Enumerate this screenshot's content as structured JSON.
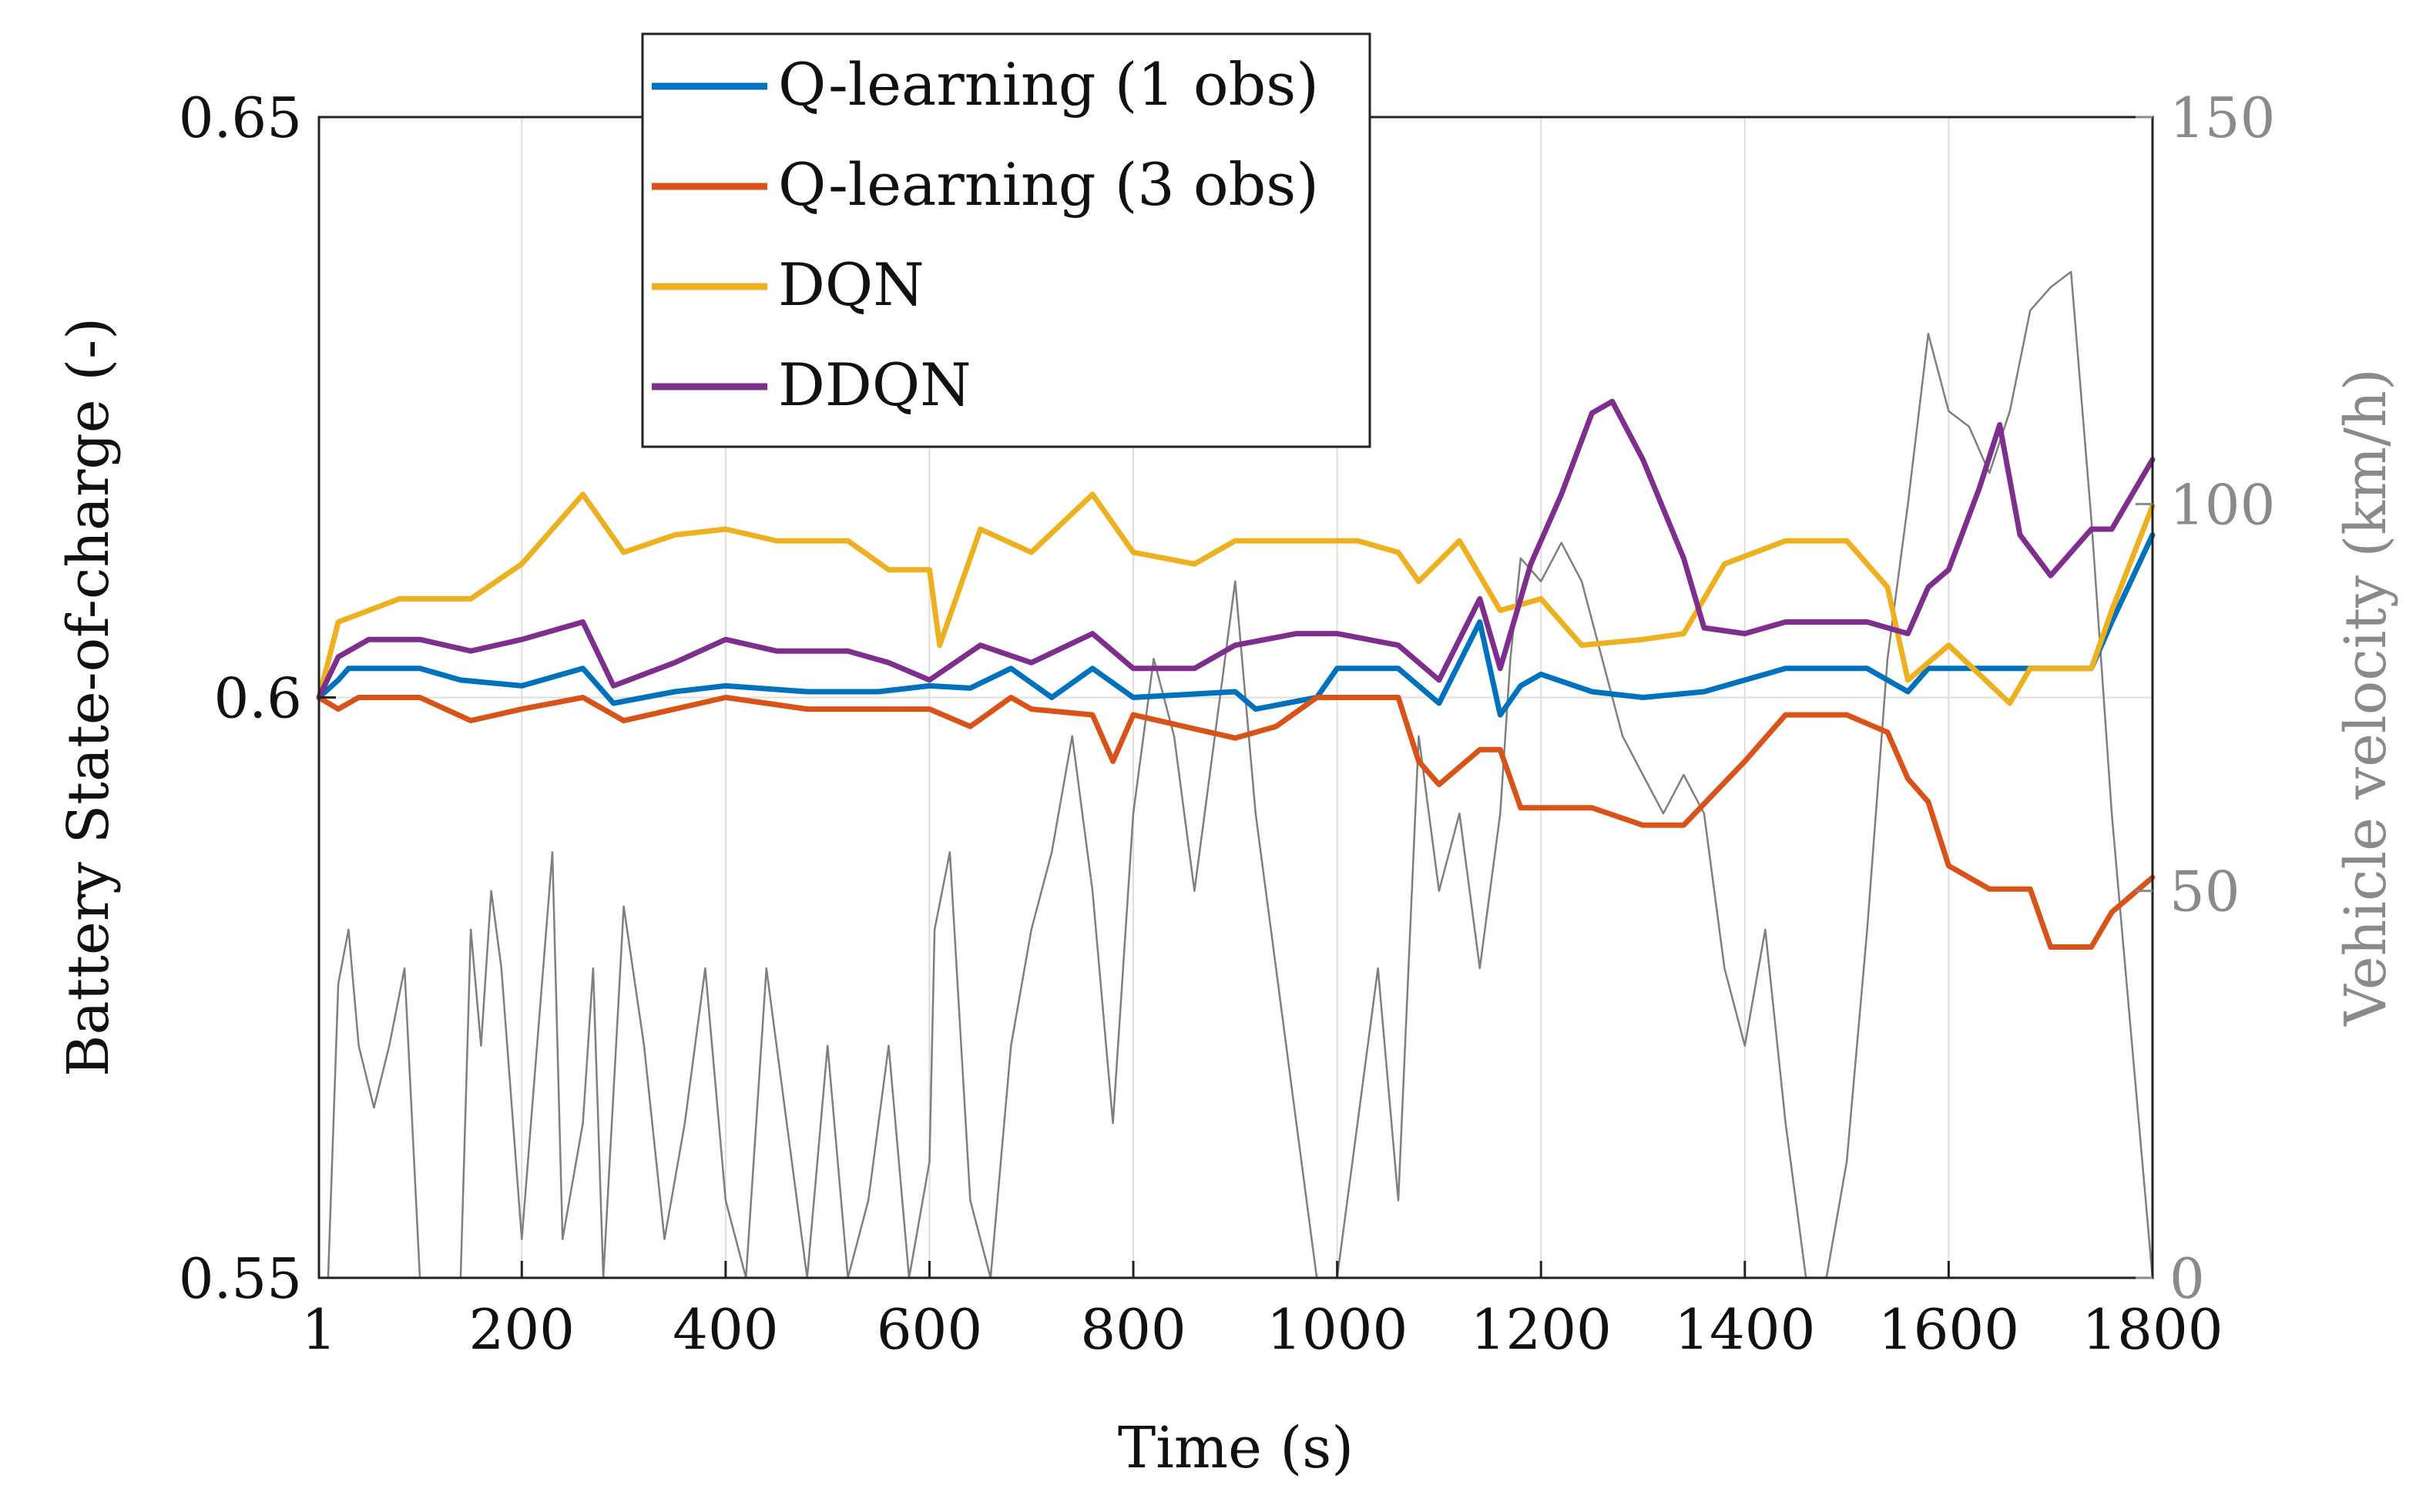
{
  "chart_data": {
    "type": "line",
    "title": "",
    "xlabel": "Time (s)",
    "ylabel": "Battery State-of-charge (-)",
    "ylabel_right": "Vehicle velocity (km/h)",
    "xlim": [
      1,
      1800
    ],
    "ylim": [
      0.55,
      0.65
    ],
    "ylim_right": [
      0,
      150
    ],
    "x_ticks": [
      "1",
      "200",
      "400",
      "600",
      "800",
      "1000",
      "1200",
      "1400",
      "1600",
      "1800"
    ],
    "x_tick_values": [
      1,
      200,
      400,
      600,
      800,
      1000,
      1200,
      1400,
      1600,
      1800
    ],
    "y_ticks": [
      "0.55",
      "0.6",
      "0.65"
    ],
    "y_tick_values": [
      0.55,
      0.6,
      0.65
    ],
    "y_right_ticks": [
      "0",
      "50",
      "100",
      "150"
    ],
    "y_right_tick_values": [
      0,
      50,
      100,
      150
    ],
    "grid": true,
    "legend_position": "top-left",
    "series": [
      {
        "name": "Q-learning (1 obs)",
        "color": "#0072BD",
        "axis": "left",
        "points": [
          [
            1,
            0.6
          ],
          [
            20,
            0.6015
          ],
          [
            30,
            0.6025
          ],
          [
            100,
            0.6025
          ],
          [
            140,
            0.6015
          ],
          [
            200,
            0.601
          ],
          [
            260,
            0.6025
          ],
          [
            290,
            0.5995
          ],
          [
            350,
            0.6005
          ],
          [
            400,
            0.601
          ],
          [
            480,
            0.6005
          ],
          [
            550,
            0.6005
          ],
          [
            600,
            0.601
          ],
          [
            640,
            0.6008
          ],
          [
            680,
            0.6025
          ],
          [
            720,
            0.6
          ],
          [
            760,
            0.6025
          ],
          [
            800,
            0.6
          ],
          [
            900,
            0.6005
          ],
          [
            920,
            0.599
          ],
          [
            980,
            0.6
          ],
          [
            1000,
            0.6025
          ],
          [
            1060,
            0.6025
          ],
          [
            1100,
            0.5995
          ],
          [
            1140,
            0.6065
          ],
          [
            1160,
            0.5985
          ],
          [
            1180,
            0.601
          ],
          [
            1200,
            0.602
          ],
          [
            1250,
            0.6005
          ],
          [
            1300,
            0.6
          ],
          [
            1360,
            0.6005
          ],
          [
            1400,
            0.6015
          ],
          [
            1440,
            0.6025
          ],
          [
            1520,
            0.6025
          ],
          [
            1560,
            0.6005
          ],
          [
            1580,
            0.6025
          ],
          [
            1640,
            0.6025
          ],
          [
            1700,
            0.6025
          ],
          [
            1740,
            0.6025
          ],
          [
            1760,
            0.6065
          ],
          [
            1800,
            0.614
          ]
        ]
      },
      {
        "name": "Q-learning (3 obs)",
        "color": "#D95319",
        "axis": "left",
        "points": [
          [
            1,
            0.6
          ],
          [
            20,
            0.599
          ],
          [
            40,
            0.6
          ],
          [
            100,
            0.6
          ],
          [
            150,
            0.598
          ],
          [
            200,
            0.599
          ],
          [
            260,
            0.6
          ],
          [
            300,
            0.598
          ],
          [
            350,
            0.599
          ],
          [
            400,
            0.6
          ],
          [
            480,
            0.599
          ],
          [
            550,
            0.599
          ],
          [
            600,
            0.599
          ],
          [
            640,
            0.5975
          ],
          [
            680,
            0.6
          ],
          [
            700,
            0.599
          ],
          [
            760,
            0.5985
          ],
          [
            780,
            0.5945
          ],
          [
            800,
            0.5985
          ],
          [
            900,
            0.5965
          ],
          [
            940,
            0.5975
          ],
          [
            980,
            0.6
          ],
          [
            1060,
            0.6
          ],
          [
            1080,
            0.5945
          ],
          [
            1100,
            0.5925
          ],
          [
            1140,
            0.5955
          ],
          [
            1160,
            0.5955
          ],
          [
            1180,
            0.5905
          ],
          [
            1250,
            0.5905
          ],
          [
            1300,
            0.589
          ],
          [
            1340,
            0.589
          ],
          [
            1400,
            0.5945
          ],
          [
            1440,
            0.5985
          ],
          [
            1500,
            0.5985
          ],
          [
            1540,
            0.597
          ],
          [
            1560,
            0.593
          ],
          [
            1580,
            0.591
          ],
          [
            1600,
            0.5855
          ],
          [
            1640,
            0.5835
          ],
          [
            1680,
            0.5835
          ],
          [
            1700,
            0.5785
          ],
          [
            1740,
            0.5785
          ],
          [
            1760,
            0.5815
          ],
          [
            1800,
            0.5845
          ]
        ]
      },
      {
        "name": "DQN",
        "color": "#EDB120",
        "axis": "left",
        "points": [
          [
            1,
            0.6
          ],
          [
            20,
            0.6065
          ],
          [
            80,
            0.6085
          ],
          [
            150,
            0.6085
          ],
          [
            200,
            0.6115
          ],
          [
            260,
            0.6175
          ],
          [
            300,
            0.6125
          ],
          [
            350,
            0.614
          ],
          [
            400,
            0.6145
          ],
          [
            450,
            0.6135
          ],
          [
            520,
            0.6135
          ],
          [
            560,
            0.611
          ],
          [
            600,
            0.611
          ],
          [
            610,
            0.6045
          ],
          [
            650,
            0.6145
          ],
          [
            700,
            0.6125
          ],
          [
            760,
            0.6175
          ],
          [
            800,
            0.6125
          ],
          [
            860,
            0.6115
          ],
          [
            900,
            0.6135
          ],
          [
            960,
            0.6135
          ],
          [
            980,
            0.6135
          ],
          [
            1020,
            0.6135
          ],
          [
            1060,
            0.6125
          ],
          [
            1080,
            0.61
          ],
          [
            1120,
            0.6135
          ],
          [
            1160,
            0.6075
          ],
          [
            1200,
            0.6085
          ],
          [
            1240,
            0.6045
          ],
          [
            1300,
            0.605
          ],
          [
            1340,
            0.6055
          ],
          [
            1380,
            0.6115
          ],
          [
            1440,
            0.6135
          ],
          [
            1500,
            0.6135
          ],
          [
            1540,
            0.6095
          ],
          [
            1560,
            0.6015
          ],
          [
            1600,
            0.6045
          ],
          [
            1660,
            0.5995
          ],
          [
            1680,
            0.6025
          ],
          [
            1740,
            0.6025
          ],
          [
            1760,
            0.6075
          ],
          [
            1800,
            0.6165
          ]
        ]
      },
      {
        "name": "DDQN",
        "color": "#7E2F8E",
        "axis": "left",
        "points": [
          [
            1,
            0.6
          ],
          [
            20,
            0.6035
          ],
          [
            50,
            0.605
          ],
          [
            100,
            0.605
          ],
          [
            150,
            0.604
          ],
          [
            200,
            0.605
          ],
          [
            260,
            0.6065
          ],
          [
            290,
            0.601
          ],
          [
            350,
            0.603
          ],
          [
            400,
            0.605
          ],
          [
            450,
            0.604
          ],
          [
            520,
            0.604
          ],
          [
            560,
            0.603
          ],
          [
            600,
            0.6015
          ],
          [
            650,
            0.6045
          ],
          [
            700,
            0.603
          ],
          [
            760,
            0.6055
          ],
          [
            800,
            0.6025
          ],
          [
            860,
            0.6025
          ],
          [
            900,
            0.6045
          ],
          [
            960,
            0.6055
          ],
          [
            1000,
            0.6055
          ],
          [
            1060,
            0.6045
          ],
          [
            1100,
            0.6015
          ],
          [
            1140,
            0.6085
          ],
          [
            1160,
            0.6025
          ],
          [
            1190,
            0.6115
          ],
          [
            1220,
            0.6175
          ],
          [
            1250,
            0.6245
          ],
          [
            1270,
            0.6255
          ],
          [
            1300,
            0.6205
          ],
          [
            1340,
            0.612
          ],
          [
            1360,
            0.606
          ],
          [
            1400,
            0.6055
          ],
          [
            1440,
            0.6065
          ],
          [
            1520,
            0.6065
          ],
          [
            1560,
            0.6055
          ],
          [
            1580,
            0.6095
          ],
          [
            1600,
            0.611
          ],
          [
            1630,
            0.618
          ],
          [
            1650,
            0.6235
          ],
          [
            1670,
            0.614
          ],
          [
            1700,
            0.6105
          ],
          [
            1740,
            0.6145
          ],
          [
            1760,
            0.6145
          ],
          [
            1800,
            0.6205
          ]
        ]
      },
      {
        "name": "Vehicle velocity",
        "color": "#7f7f7f",
        "axis": "right",
        "points": [
          [
            1,
            0
          ],
          [
            10,
            0
          ],
          [
            20,
            38
          ],
          [
            30,
            45
          ],
          [
            40,
            30
          ],
          [
            55,
            22
          ],
          [
            70,
            30
          ],
          [
            85,
            40
          ],
          [
            100,
            0
          ],
          [
            140,
            0
          ],
          [
            150,
            45
          ],
          [
            160,
            30
          ],
          [
            170,
            50
          ],
          [
            180,
            40
          ],
          [
            200,
            5
          ],
          [
            215,
            30
          ],
          [
            230,
            55
          ],
          [
            240,
            5
          ],
          [
            260,
            20
          ],
          [
            270,
            40
          ],
          [
            280,
            0
          ],
          [
            300,
            48
          ],
          [
            320,
            30
          ],
          [
            340,
            5
          ],
          [
            360,
            20
          ],
          [
            380,
            40
          ],
          [
            400,
            10
          ],
          [
            420,
            0
          ],
          [
            440,
            40
          ],
          [
            460,
            20
          ],
          [
            480,
            0
          ],
          [
            500,
            30
          ],
          [
            520,
            0
          ],
          [
            540,
            10
          ],
          [
            560,
            30
          ],
          [
            580,
            0
          ],
          [
            600,
            15
          ],
          [
            605,
            45
          ],
          [
            620,
            55
          ],
          [
            640,
            10
          ],
          [
            660,
            0
          ],
          [
            680,
            30
          ],
          [
            700,
            45
          ],
          [
            720,
            55
          ],
          [
            740,
            70
          ],
          [
            760,
            50
          ],
          [
            780,
            20
          ],
          [
            800,
            60
          ],
          [
            820,
            80
          ],
          [
            840,
            70
          ],
          [
            860,
            50
          ],
          [
            880,
            70
          ],
          [
            900,
            90
          ],
          [
            920,
            60
          ],
          [
            940,
            40
          ],
          [
            960,
            20
          ],
          [
            980,
            0
          ],
          [
            1000,
            0
          ],
          [
            1020,
            20
          ],
          [
            1040,
            40
          ],
          [
            1060,
            10
          ],
          [
            1080,
            70
          ],
          [
            1100,
            50
          ],
          [
            1120,
            60
          ],
          [
            1140,
            40
          ],
          [
            1160,
            60
          ],
          [
            1170,
            80
          ],
          [
            1180,
            93
          ],
          [
            1200,
            90
          ],
          [
            1220,
            95
          ],
          [
            1240,
            90
          ],
          [
            1260,
            80
          ],
          [
            1280,
            70
          ],
          [
            1300,
            65
          ],
          [
            1320,
            60
          ],
          [
            1340,
            65
          ],
          [
            1360,
            60
          ],
          [
            1380,
            40
          ],
          [
            1400,
            30
          ],
          [
            1420,
            45
          ],
          [
            1440,
            20
          ],
          [
            1460,
            0
          ],
          [
            1480,
            0
          ],
          [
            1500,
            15
          ],
          [
            1520,
            45
          ],
          [
            1540,
            80
          ],
          [
            1560,
            100
          ],
          [
            1580,
            122
          ],
          [
            1600,
            112
          ],
          [
            1620,
            110
          ],
          [
            1640,
            104
          ],
          [
            1660,
            112
          ],
          [
            1680,
            125
          ],
          [
            1700,
            128
          ],
          [
            1720,
            130
          ],
          [
            1740,
            98
          ],
          [
            1760,
            60
          ],
          [
            1780,
            30
          ],
          [
            1800,
            0
          ]
        ]
      }
    ]
  }
}
